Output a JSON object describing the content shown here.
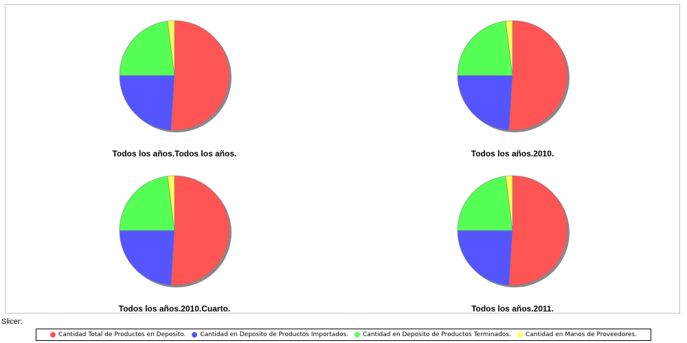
{
  "chart_data": [
    {
      "type": "pie",
      "title": "Todos los años.Todos los años.",
      "labels": [
        "Cantidad Total de Productos en Deposito.",
        "Cantidad en Deposito de Productos Importados.",
        "Cantidad en Deposito de Productos Terminados.",
        "Cantidad en Manos de Proveedores."
      ],
      "values": [
        51,
        24,
        23,
        2
      ]
    },
    {
      "type": "pie",
      "title": "Todos los años.2010.",
      "labels": [
        "Cantidad Total de Productos en Deposito.",
        "Cantidad en Deposito de Productos Importados.",
        "Cantidad en Deposito de Productos Terminados.",
        "Cantidad en Manos de Proveedores."
      ],
      "values": [
        51,
        24,
        23,
        2
      ]
    },
    {
      "type": "pie",
      "title": "Todos los años.2010.Cuarto.",
      "labels": [
        "Cantidad Total de Productos en Deposito.",
        "Cantidad en Deposito de Productos Importados.",
        "Cantidad en Deposito de Productos Terminados.",
        "Cantidad en Manos de Proveedores."
      ],
      "values": [
        51,
        24,
        23,
        2
      ]
    },
    {
      "type": "pie",
      "title": "Todos los años.2011.",
      "labels": [
        "Cantidad Total de Productos en Deposito.",
        "Cantidad en Deposito de Productos Importados.",
        "Cantidad en Deposito de Productos Terminados.",
        "Cantidad en Manos de Proveedores."
      ],
      "values": [
        51,
        24,
        23,
        2
      ]
    }
  ],
  "colors": [
    "#ff5555",
    "#5555ff",
    "#55ff55",
    "#ffff55"
  ],
  "slicer_label": "Slicer:",
  "legend": {
    "position": "bottom",
    "items": [
      {
        "label": "Cantidad Total de Productos en Deposito.",
        "color": "#ff5555"
      },
      {
        "label": "Cantidad en Deposito de Productos Importados.",
        "color": "#5555ff"
      },
      {
        "label": "Cantidad en Deposito de Productos Terminados.",
        "color": "#55ff55"
      },
      {
        "label": "Cantidad en Manos de Proveedores.",
        "color": "#ffff55"
      }
    ]
  }
}
